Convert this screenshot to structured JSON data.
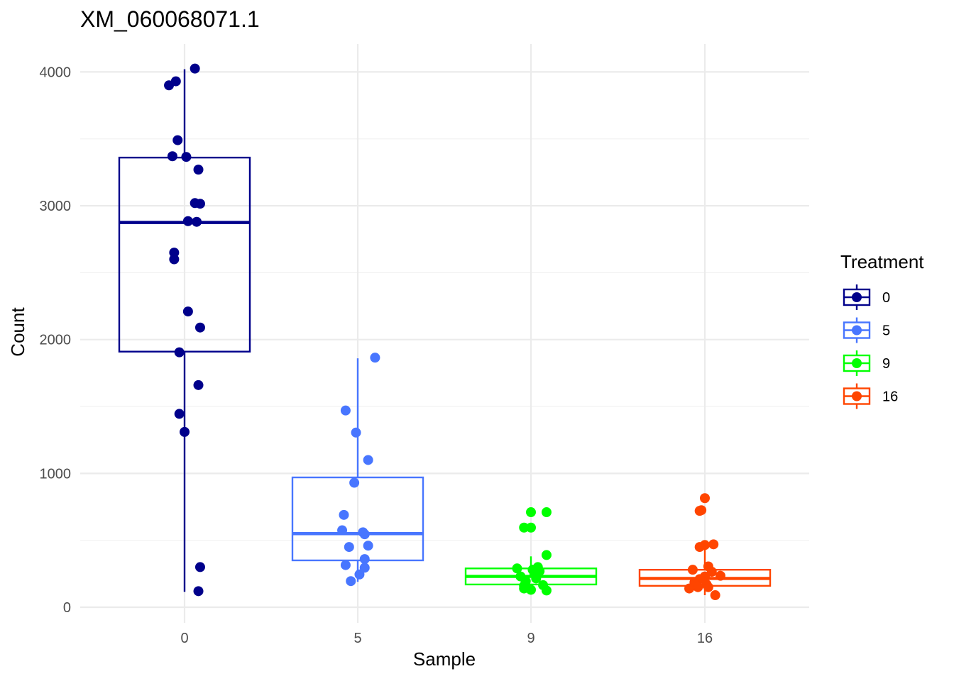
{
  "chart_data": {
    "type": "box",
    "title": "XM_060068071.1",
    "xlabel": "Sample",
    "ylabel": "Count",
    "categories": [
      "0",
      "5",
      "9",
      "16"
    ],
    "ylim": [
      -230,
      4250
    ],
    "yticks": [
      0,
      1000,
      2000,
      3000,
      4000
    ],
    "grid": true,
    "legend": {
      "title": "Treatment",
      "position": "right",
      "entries": [
        "0",
        "5",
        "9",
        "16"
      ]
    },
    "colors": {
      "0": "#00008B",
      "5": "#4876FF",
      "9": "#00FF00",
      "16": "#FF4500"
    },
    "series": [
      {
        "name": "0",
        "box": {
          "whisker_low": 115,
          "q1": 1910,
          "median": 2875,
          "q3": 3360,
          "whisker_high": 4020
        },
        "points": [
          {
            "x": 0.06,
            "y": 4025
          },
          {
            "x": -0.05,
            "y": 3930
          },
          {
            "x": -0.09,
            "y": 3900
          },
          {
            "x": -0.04,
            "y": 3490
          },
          {
            "x": -0.07,
            "y": 3370
          },
          {
            "x": 0.01,
            "y": 3365
          },
          {
            "x": 0.08,
            "y": 3270
          },
          {
            "x": 0.06,
            "y": 3020
          },
          {
            "x": 0.09,
            "y": 3015
          },
          {
            "x": 0.02,
            "y": 2885
          },
          {
            "x": 0.07,
            "y": 2880
          },
          {
            "x": -0.06,
            "y": 2650
          },
          {
            "x": -0.06,
            "y": 2600
          },
          {
            "x": 0.02,
            "y": 2210
          },
          {
            "x": 0.09,
            "y": 2090
          },
          {
            "x": -0.03,
            "y": 1905
          },
          {
            "x": 0.08,
            "y": 1660
          },
          {
            "x": -0.03,
            "y": 1445
          },
          {
            "x": 0.0,
            "y": 1310
          },
          {
            "x": 0.09,
            "y": 300
          },
          {
            "x": 0.08,
            "y": 120
          }
        ]
      },
      {
        "name": "5",
        "box": {
          "whisker_low": 190,
          "q1": 350,
          "median": 550,
          "q3": 970,
          "whisker_high": 1860
        },
        "points": [
          {
            "x": 0.1,
            "y": 1865
          },
          {
            "x": -0.07,
            "y": 1470
          },
          {
            "x": -0.01,
            "y": 1305
          },
          {
            "x": 0.06,
            "y": 1100
          },
          {
            "x": -0.02,
            "y": 930
          },
          {
            "x": -0.08,
            "y": 690
          },
          {
            "x": -0.09,
            "y": 575
          },
          {
            "x": 0.03,
            "y": 560
          },
          {
            "x": 0.04,
            "y": 545
          },
          {
            "x": 0.06,
            "y": 460
          },
          {
            "x": -0.05,
            "y": 450
          },
          {
            "x": 0.04,
            "y": 360
          },
          {
            "x": -0.07,
            "y": 315
          },
          {
            "x": 0.04,
            "y": 295
          },
          {
            "x": 0.01,
            "y": 245
          },
          {
            "x": -0.04,
            "y": 195
          }
        ]
      },
      {
        "name": "9",
        "box": {
          "whisker_low": 120,
          "q1": 170,
          "median": 230,
          "q3": 290,
          "whisker_high": 380
        },
        "points": [
          {
            "x": 0.0,
            "y": 710
          },
          {
            "x": 0.09,
            "y": 710
          },
          {
            "x": -0.04,
            "y": 595
          },
          {
            "x": 0.0,
            "y": 595
          },
          {
            "x": 0.09,
            "y": 390
          },
          {
            "x": -0.08,
            "y": 290
          },
          {
            "x": 0.04,
            "y": 300
          },
          {
            "x": 0.01,
            "y": 280
          },
          {
            "x": 0.05,
            "y": 270
          },
          {
            "x": 0.02,
            "y": 250
          },
          {
            "x": -0.06,
            "y": 230
          },
          {
            "x": 0.03,
            "y": 215
          },
          {
            "x": -0.03,
            "y": 195
          },
          {
            "x": -0.04,
            "y": 160
          },
          {
            "x": 0.07,
            "y": 165
          },
          {
            "x": -0.04,
            "y": 140
          },
          {
            "x": 0.0,
            "y": 130
          },
          {
            "x": 0.09,
            "y": 125
          }
        ]
      },
      {
        "name": "16",
        "box": {
          "whisker_low": 90,
          "q1": 160,
          "median": 215,
          "q3": 280,
          "whisker_high": 460
        },
        "points": [
          {
            "x": 0.0,
            "y": 815
          },
          {
            "x": -0.02,
            "y": 725
          },
          {
            "x": -0.03,
            "y": 720
          },
          {
            "x": 0.05,
            "y": 470
          },
          {
            "x": 0.0,
            "y": 465
          },
          {
            "x": -0.03,
            "y": 450
          },
          {
            "x": 0.02,
            "y": 305
          },
          {
            "x": -0.07,
            "y": 280
          },
          {
            "x": 0.04,
            "y": 265
          },
          {
            "x": 0.09,
            "y": 235
          },
          {
            "x": 0.0,
            "y": 230
          },
          {
            "x": -0.03,
            "y": 210
          },
          {
            "x": -0.06,
            "y": 185
          },
          {
            "x": 0.01,
            "y": 170
          },
          {
            "x": -0.05,
            "y": 160
          },
          {
            "x": -0.04,
            "y": 150
          },
          {
            "x": 0.02,
            "y": 150
          },
          {
            "x": -0.09,
            "y": 140
          },
          {
            "x": 0.06,
            "y": 90
          }
        ]
      }
    ]
  }
}
